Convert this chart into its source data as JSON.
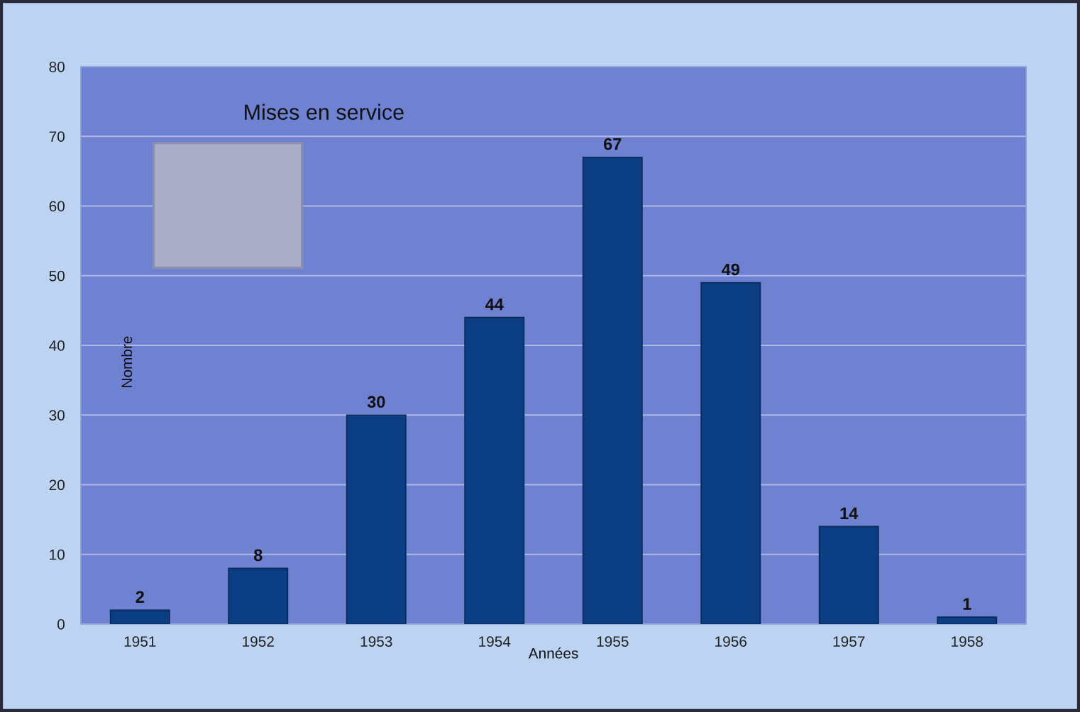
{
  "chart_data": {
    "type": "bar",
    "title": "Mises en service",
    "xlabel": "Années",
    "ylabel": "Nombre",
    "categories": [
      "1951",
      "1952",
      "1953",
      "1954",
      "1955",
      "1956",
      "1957",
      "1958"
    ],
    "values": [
      2,
      8,
      30,
      44,
      67,
      49,
      14,
      1
    ],
    "color": "#0b3d82",
    "ylim": [
      0,
      80
    ],
    "yticks": [
      0,
      10,
      20,
      30,
      40,
      50,
      60,
      70,
      80
    ],
    "grid": "y",
    "data_labels": true
  }
}
